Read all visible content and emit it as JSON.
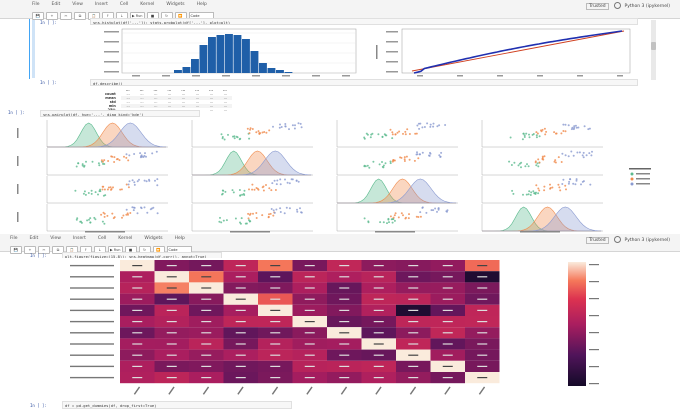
{
  "toolbar_top": {
    "menu": [
      "File",
      "Edit",
      "View",
      "Insert",
      "Cell",
      "Kernel",
      "Widgets",
      "Help"
    ],
    "buttons": [
      "💾",
      "+",
      "✂",
      "⧉",
      "📋",
      "↑",
      "↓",
      "▶ Run",
      "■",
      "↻",
      "⏩"
    ],
    "cell_type": "Code",
    "kernel": "Python 3 (ipykernel)",
    "kernel_status": "Trusted"
  },
  "toolbar_mid": {
    "menu": [
      "File",
      "Edit",
      "View",
      "Insert",
      "Cell",
      "Kernel",
      "Widgets",
      "Help"
    ],
    "buttons": [
      "💾",
      "+",
      "✂",
      "⧉",
      "📋",
      "↑",
      "↓",
      "▶ Run",
      "■",
      "↻",
      "⏩"
    ],
    "cell_type": "Code",
    "kernel": "Python 3 (ipykernel)",
    "kernel_status": "Trusted"
  },
  "cells": {
    "top_in": "In [ ]:",
    "top_out": "Out[ ]:",
    "top_code": "sns.histplot(df['...']); stats.probplot(df['...'], plot=plt)",
    "describe_in": "In [ ]:",
    "describe_code": "df.describe()",
    "pair_in": "In [ ]:",
    "pair_code": "sns.pairplot(df, hue='...', diag_kind='kde')",
    "heat_in": "In [ ]:",
    "heat_code": "plt.figure(figsize=(15,8)); sns.heatmap(df.corr(), annot=True)",
    "bottom_in": "In [ ]:",
    "bottom_code": "df = pd.get_dummies(df, drop_first=True)"
  },
  "describe_table": {
    "headers": [
      "",
      "...",
      "...",
      "...",
      "...",
      "...",
      "...",
      "...",
      "..."
    ],
    "rows": [
      [
        "count",
        "...",
        "...",
        "...",
        "...",
        "...",
        "...",
        "...",
        "..."
      ],
      [
        "mean",
        "...",
        "...",
        "...",
        "...",
        "...",
        "...",
        "...",
        "..."
      ],
      [
        "std",
        "...",
        "...",
        "...",
        "...",
        "...",
        "...",
        "...",
        "..."
      ],
      [
        "min",
        "...",
        "...",
        "...",
        "...",
        "...",
        "...",
        "...",
        "..."
      ],
      [
        "25%",
        "...",
        "...",
        "...",
        "...",
        "...",
        "...",
        "...",
        "..."
      ]
    ]
  },
  "colors": {
    "hist_bar": "#1f5fa8",
    "qq_line": "#d04020",
    "qq_points": "#2030b0",
    "pair_a": "#5cba8e",
    "pair_b": "#f08a4b",
    "pair_c": "#8a9ad0"
  }
}
